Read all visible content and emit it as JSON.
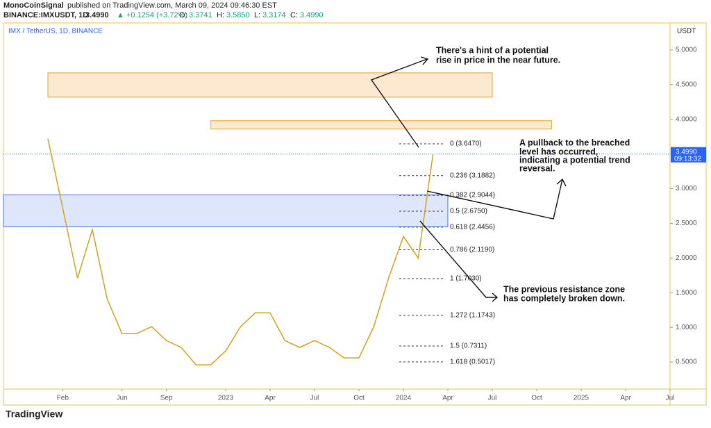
{
  "header": {
    "author": "MonoCoinSignal",
    "published": "published on TradingView.com, March 09, 2024 09:46:30 EST",
    "symbol": "BINANCE:IMXUSDT, 1D",
    "last": "3.4990",
    "change": "▲ +0.1254 (+3.72%)",
    "o_label": "O:",
    "o": "3.3741",
    "h_label": "H:",
    "h": "3.5850",
    "l_label": "L:",
    "l": "3.3174",
    "c_label": "C:",
    "c": "3.4990"
  },
  "footer": {
    "logo": "TradingView"
  },
  "chart_data": {
    "type": "line",
    "legend_title": "IMX / TetherUS, 1D, BINANCE",
    "axis_unit": "USDT",
    "log_scale": false,
    "grid": false,
    "x": [
      "2022-01",
      "2022-02",
      "2022-03",
      "2022-04",
      "2022-05",
      "2022-06",
      "2022-07",
      "2022-08",
      "2022-09",
      "2022-10",
      "2022-11",
      "2022-12",
      "2023-01",
      "2023-02",
      "2023-03",
      "2023-04",
      "2023-05",
      "2023-06",
      "2023-07",
      "2023-08",
      "2023-09",
      "2023-10",
      "2023-11",
      "2023-12",
      "2024-01",
      "2024-02",
      "2024-03"
    ],
    "series": [
      {
        "name": "IMX / TetherUS",
        "color": "#d4a017",
        "values": [
          3.72,
          2.72,
          1.71,
          2.41,
          1.41,
          0.91,
          0.91,
          1.01,
          0.81,
          0.71,
          0.46,
          0.46,
          0.66,
          1.01,
          1.21,
          1.21,
          0.81,
          0.71,
          0.81,
          0.71,
          0.56,
          0.56,
          1.01,
          1.71,
          2.31,
          2.0,
          3.499
        ]
      }
    ],
    "current_price": {
      "value": 3.499,
      "label": "3.4990",
      "countdown": "09:13:32"
    },
    "xlim": [
      "2021-10",
      "2025-07"
    ],
    "xticks": [
      {
        "value": "2022-02",
        "label": "Feb"
      },
      {
        "value": "2022-06",
        "label": "Jun"
      },
      {
        "value": "2022-09",
        "label": "Sep"
      },
      {
        "value": "2023-01",
        "label": "2023"
      },
      {
        "value": "2023-04",
        "label": "Apr"
      },
      {
        "value": "2023-07",
        "label": "Jul"
      },
      {
        "value": "2023-10",
        "label": "Oct"
      },
      {
        "value": "2024-01",
        "label": "2024"
      },
      {
        "value": "2024-04",
        "label": "Apr"
      },
      {
        "value": "2024-07",
        "label": "Jul"
      },
      {
        "value": "2024-10",
        "label": "Oct"
      },
      {
        "value": "2025-01",
        "label": "2025"
      },
      {
        "value": "2025-04",
        "label": "Apr"
      },
      {
        "value": "2025-07",
        "label": "Jul"
      }
    ],
    "ylim": [
      0.11,
      5.39
    ],
    "yticks": [
      {
        "value": 0.5,
        "label": "0.5000"
      },
      {
        "value": 1,
        "label": "1.0000"
      },
      {
        "value": 1.5,
        "label": "1.5000"
      },
      {
        "value": 2,
        "label": "2.0000"
      },
      {
        "value": 2.5,
        "label": "2.5000"
      },
      {
        "value": 3,
        "label": "3.0000"
      },
      {
        "value": 3.5,
        "label": "3.5000"
      },
      {
        "value": 4,
        "label": "4.0000"
      },
      {
        "value": 4.5,
        "label": "4.5000"
      },
      {
        "value": 5,
        "label": "5.0000"
      }
    ],
    "zones": [
      {
        "from": "2022-01",
        "to": "2024-07",
        "low": 4.32,
        "high": 4.67,
        "color": "#fbe3c4",
        "border": "#e3a52c"
      },
      {
        "from": "2022-12",
        "to": "2024-11",
        "low": 3.86,
        "high": 3.98,
        "color": "#fbe3c4",
        "border": "#e3a52c"
      },
      {
        "from": "2021-10",
        "to": "2024-04",
        "low": 2.45,
        "high": 2.91,
        "color": "#d6e0fb",
        "border": "#4a6fd8"
      }
    ],
    "fib_levels": [
      {
        "value": 3.647,
        "label": "0 (3.6470)"
      },
      {
        "value": 3.1882,
        "label": "0.236 (3.1882)"
      },
      {
        "value": 2.9044,
        "label": "0.382 (2.9044)"
      },
      {
        "value": 2.675,
        "label": "0.5 (2.6750)"
      },
      {
        "value": 2.4456,
        "label": "0.618 (2.4456)"
      },
      {
        "value": 2.119,
        "label": "0.786 (2.1190)"
      },
      {
        "value": 1.703,
        "label": "1 (1.7030)"
      },
      {
        "value": 1.1743,
        "label": "1.272 (1.1743)"
      },
      {
        "value": 0.7311,
        "label": "1.5 (0.7311)"
      },
      {
        "value": 0.5017,
        "label": "1.618 (0.5017)"
      }
    ],
    "annotations": [
      {
        "line1": "There's a hint of a potential",
        "line2": "rise in price in the near future."
      },
      {
        "line1": "A pullback to the breached",
        "line2": "level has occurred,",
        "line3": "indicating a potential trend",
        "line4": "reversal."
      },
      {
        "line1": "The previous resistance zone",
        "line2": "has completely broken down."
      }
    ]
  }
}
